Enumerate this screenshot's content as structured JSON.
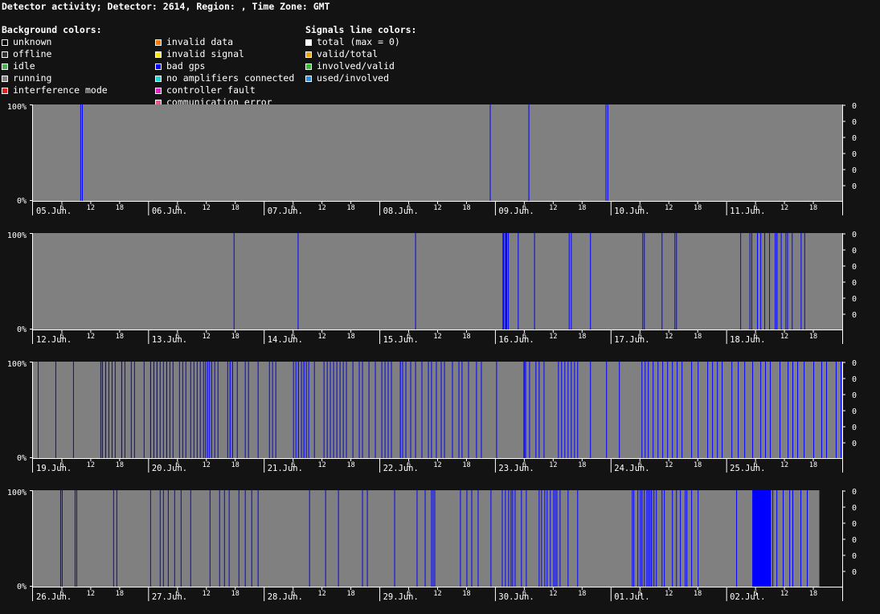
{
  "header": {
    "title": "Detector activity; Detector: 2614, Region: , Time Zone: GMT"
  },
  "legend": {
    "background": {
      "title": "Background colors:",
      "col1": [
        {
          "label": "unknown",
          "color": "#000000"
        },
        {
          "label": "offline",
          "color": "#333333"
        },
        {
          "label": "idle",
          "color": "#4caf50"
        },
        {
          "label": "running",
          "color": "#808080"
        },
        {
          "label": "interference mode",
          "color": "#e0201e"
        }
      ],
      "col2": [
        {
          "label": "invalid data",
          "color": "#f07c13"
        },
        {
          "label": "invalid signal",
          "color": "#f5e620"
        },
        {
          "label": "bad gps",
          "color": "#0000ff"
        },
        {
          "label": "no amplifiers connected",
          "color": "#1fd7d7"
        },
        {
          "label": "controller fault",
          "color": "#e020c8"
        },
        {
          "label": "communication error",
          "color": "#f2558a"
        }
      ]
    },
    "signals": {
      "title": "Signals line colors:",
      "items": [
        {
          "label": "total (max = 0)",
          "color": "#ffffff"
        },
        {
          "label": "valid/total",
          "color": "#f0a30a"
        },
        {
          "label": "involved/valid",
          "color": "#30c030"
        },
        {
          "label": "used/involved",
          "color": "#2f8fe0"
        }
      ]
    }
  },
  "chart_data": {
    "type": "timeline",
    "y_left_ticks": [
      "100%",
      "0%"
    ],
    "y_right_ticks": [
      "0",
      "0",
      "0",
      "0",
      "0",
      "0"
    ],
    "hour_ticks": [
      "6",
      "12",
      "18"
    ],
    "running_color": "#808080",
    "bad_gps_color": "#0000ff",
    "rows": [
      {
        "days": [
          "05.Jun.",
          "06.Jun.",
          "07.Jun.",
          "08.Jun.",
          "09.Jun.",
          "10.Jun.",
          "11.Jun."
        ],
        "data_end_day": 7,
        "bad_gps": [
          [
            0.409,
            0.004
          ],
          [
            0.424,
            0.004
          ],
          [
            3.952,
            0.004
          ],
          [
            4.286,
            0.004
          ],
          [
            4.953,
            0.004
          ],
          [
            4.969,
            0.004
          ]
        ]
      },
      {
        "days": [
          "12.Jun.",
          "13.Jun.",
          "14.Jun.",
          "15.Jun.",
          "16.Jun.",
          "17.Jun.",
          "18.Jun."
        ],
        "data_end_day": 7,
        "bad_gps": [
          [
            1.736,
            0.004
          ],
          [
            2.29,
            0.004
          ],
          [
            3.306,
            0.004
          ],
          [
            4.062,
            0.014
          ],
          [
            4.084,
            0.018
          ],
          [
            4.109,
            0.006
          ],
          [
            4.194,
            0.004
          ],
          [
            4.335,
            0.004
          ],
          [
            4.635,
            0.006
          ],
          [
            4.653,
            0.004
          ],
          [
            4.819,
            0.004
          ],
          [
            5.271,
            0.006
          ],
          [
            5.285,
            0.006
          ],
          [
            5.438,
            0.004
          ],
          [
            5.549,
            0.004
          ],
          [
            5.563,
            0.004
          ],
          [
            6.118,
            0.004
          ],
          [
            6.198,
            0.004
          ],
          [
            6.214,
            0.006
          ],
          [
            6.263,
            0.004
          ],
          [
            6.292,
            0.004
          ],
          [
            6.326,
            0.004
          ],
          [
            6.368,
            0.004
          ],
          [
            6.417,
            0.006
          ],
          [
            6.431,
            0.008
          ],
          [
            6.469,
            0.006
          ],
          [
            6.509,
            0.006
          ],
          [
            6.524,
            0.004
          ],
          [
            6.564,
            0.004
          ],
          [
            6.641,
            0.006
          ],
          [
            6.672,
            0.004
          ]
        ]
      },
      {
        "days": [
          "19.Jun.",
          "20.Jun.",
          "21.Jun.",
          "22.Jun.",
          "23.Jun.",
          "24.Jun.",
          "25.Jun."
        ],
        "data_end_day": 7,
        "bad_gps": [
          [
            0.042,
            0.004
          ],
          [
            0.194,
            0.004
          ],
          [
            0.347,
            0.004
          ],
          [
            0.583,
            0.004
          ],
          [
            0.597,
            0.008
          ],
          [
            0.625,
            0.008
          ],
          [
            0.653,
            0.004
          ],
          [
            0.681,
            0.004
          ],
          [
            0.708,
            0.004
          ],
          [
            0.764,
            0.008
          ],
          [
            0.792,
            0.004
          ],
          [
            0.847,
            0.004
          ],
          [
            0.875,
            0.004
          ],
          [
            0.958,
            0.004
          ],
          [
            1.014,
            0.008
          ],
          [
            1.042,
            0.008
          ],
          [
            1.069,
            0.008
          ],
          [
            1.097,
            0.004
          ],
          [
            1.125,
            0.004
          ],
          [
            1.153,
            0.008
          ],
          [
            1.181,
            0.004
          ],
          [
            1.208,
            0.004
          ],
          [
            1.264,
            0.004
          ],
          [
            1.292,
            0.004
          ],
          [
            1.319,
            0.004
          ],
          [
            1.361,
            0.004
          ],
          [
            1.389,
            0.004
          ],
          [
            1.417,
            0.004
          ],
          [
            1.444,
            0.004
          ],
          [
            1.472,
            0.006
          ],
          [
            1.49,
            0.006
          ],
          [
            1.507,
            0.006
          ],
          [
            1.524,
            0.004
          ],
          [
            1.542,
            0.006
          ],
          [
            1.569,
            0.004
          ],
          [
            1.597,
            0.004
          ],
          [
            1.681,
            0.006
          ],
          [
            1.701,
            0.008
          ],
          [
            1.722,
            0.008
          ],
          [
            1.764,
            0.004
          ],
          [
            1.833,
            0.004
          ],
          [
            1.861,
            0.004
          ],
          [
            1.944,
            0.004
          ],
          [
            2.042,
            0.004
          ],
          [
            2.069,
            0.004
          ],
          [
            2.097,
            0.004
          ],
          [
            2.25,
            0.006
          ],
          [
            2.271,
            0.004
          ],
          [
            2.292,
            0.008
          ],
          [
            2.319,
            0.006
          ],
          [
            2.34,
            0.008
          ],
          [
            2.361,
            0.004
          ],
          [
            2.382,
            0.006
          ],
          [
            2.431,
            0.004
          ],
          [
            2.514,
            0.004
          ],
          [
            2.542,
            0.006
          ],
          [
            2.569,
            0.004
          ],
          [
            2.597,
            0.004
          ],
          [
            2.625,
            0.006
          ],
          [
            2.653,
            0.004
          ],
          [
            2.681,
            0.004
          ],
          [
            2.708,
            0.004
          ],
          [
            2.764,
            0.004
          ],
          [
            2.819,
            0.004
          ],
          [
            2.847,
            0.004
          ],
          [
            2.903,
            0.004
          ],
          [
            2.958,
            0.004
          ],
          [
            3.014,
            0.004
          ],
          [
            3.042,
            0.004
          ],
          [
            3.069,
            0.004
          ],
          [
            3.097,
            0.004
          ],
          [
            3.174,
            0.008
          ],
          [
            3.194,
            0.006
          ],
          [
            3.222,
            0.004
          ],
          [
            3.264,
            0.004
          ],
          [
            3.306,
            0.004
          ],
          [
            3.361,
            0.004
          ],
          [
            3.417,
            0.004
          ],
          [
            3.444,
            0.004
          ],
          [
            3.486,
            0.004
          ],
          [
            3.528,
            0.004
          ],
          [
            3.556,
            0.004
          ],
          [
            3.625,
            0.004
          ],
          [
            3.681,
            0.004
          ],
          [
            3.708,
            0.004
          ],
          [
            3.764,
            0.004
          ],
          [
            3.833,
            0.004
          ],
          [
            3.875,
            0.004
          ],
          [
            4.007,
            0.004
          ],
          [
            4.243,
            0.01
          ],
          [
            4.257,
            0.008
          ],
          [
            4.292,
            0.004
          ],
          [
            4.347,
            0.004
          ],
          [
            4.375,
            0.004
          ],
          [
            4.417,
            0.004
          ],
          [
            4.542,
            0.004
          ],
          [
            4.569,
            0.004
          ],
          [
            4.597,
            0.006
          ],
          [
            4.625,
            0.004
          ],
          [
            4.653,
            0.006
          ],
          [
            4.681,
            0.006
          ],
          [
            4.708,
            0.004
          ],
          [
            4.819,
            0.004
          ],
          [
            4.958,
            0.004
          ],
          [
            5.069,
            0.004
          ],
          [
            5.264,
            0.004
          ],
          [
            5.292,
            0.004
          ],
          [
            5.319,
            0.004
          ],
          [
            5.361,
            0.004
          ],
          [
            5.403,
            0.004
          ],
          [
            5.444,
            0.004
          ],
          [
            5.486,
            0.004
          ],
          [
            5.528,
            0.004
          ],
          [
            5.569,
            0.004
          ],
          [
            5.611,
            0.004
          ],
          [
            5.694,
            0.004
          ],
          [
            5.75,
            0.004
          ],
          [
            5.833,
            0.004
          ],
          [
            5.875,
            0.004
          ],
          [
            5.917,
            0.004
          ],
          [
            5.958,
            0.004
          ],
          [
            6.042,
            0.004
          ],
          [
            6.097,
            0.004
          ],
          [
            6.153,
            0.004
          ],
          [
            6.222,
            0.004
          ],
          [
            6.292,
            0.004
          ],
          [
            6.333,
            0.004
          ],
          [
            6.375,
            0.004
          ],
          [
            6.458,
            0.004
          ],
          [
            6.528,
            0.004
          ],
          [
            6.569,
            0.004
          ],
          [
            6.611,
            0.004
          ],
          [
            6.667,
            0.004
          ],
          [
            6.75,
            0.004
          ],
          [
            6.819,
            0.004
          ],
          [
            6.861,
            0.004
          ],
          [
            6.944,
            0.004
          ],
          [
            6.986,
            0.004
          ]
        ]
      },
      {
        "days": [
          "26.Jun.",
          "27.Jun.",
          "28.Jun.",
          "29.Jun.",
          "30.Jun.",
          "01.Jul.",
          "02.Jul."
        ],
        "data_end_day": 6.802,
        "bad_gps": [
          [
            0.236,
            0.008
          ],
          [
            0.25,
            0.006
          ],
          [
            0.361,
            0.004
          ],
          [
            0.375,
            0.006
          ],
          [
            0.694,
            0.006
          ],
          [
            0.722,
            0.004
          ],
          [
            1.014,
            0.004
          ],
          [
            1.097,
            0.004
          ],
          [
            1.125,
            0.004
          ],
          [
            1.167,
            0.004
          ],
          [
            1.222,
            0.004
          ],
          [
            1.278,
            0.004
          ],
          [
            1.361,
            0.004
          ],
          [
            1.528,
            0.004
          ],
          [
            1.611,
            0.004
          ],
          [
            1.653,
            0.004
          ],
          [
            1.694,
            0.004
          ],
          [
            1.778,
            0.004
          ],
          [
            1.833,
            0.004
          ],
          [
            1.889,
            0.004
          ],
          [
            1.944,
            0.004
          ],
          [
            2.389,
            0.004
          ],
          [
            2.528,
            0.004
          ],
          [
            2.639,
            0.004
          ],
          [
            2.847,
            0.004
          ],
          [
            2.889,
            0.004
          ],
          [
            3.125,
            0.004
          ],
          [
            3.319,
            0.004
          ],
          [
            3.389,
            0.004
          ],
          [
            3.444,
            0.004
          ],
          [
            3.458,
            0.006
          ],
          [
            3.472,
            0.004
          ],
          [
            3.694,
            0.004
          ],
          [
            3.75,
            0.004
          ],
          [
            3.792,
            0.004
          ],
          [
            3.847,
            0.004
          ],
          [
            3.958,
            0.004
          ],
          [
            4.056,
            0.004
          ],
          [
            4.083,
            0.004
          ],
          [
            4.111,
            0.006
          ],
          [
            4.132,
            0.004
          ],
          [
            4.146,
            0.004
          ],
          [
            4.167,
            0.006
          ],
          [
            4.222,
            0.004
          ],
          [
            4.264,
            0.004
          ],
          [
            4.375,
            0.006
          ],
          [
            4.396,
            0.004
          ],
          [
            4.424,
            0.006
          ],
          [
            4.444,
            0.004
          ],
          [
            4.472,
            0.004
          ],
          [
            4.5,
            0.004
          ],
          [
            4.514,
            0.006
          ],
          [
            4.528,
            0.004
          ],
          [
            4.556,
            0.004
          ],
          [
            4.625,
            0.004
          ],
          [
            4.708,
            0.004
          ],
          [
            5.181,
            0.004
          ],
          [
            5.194,
            0.006
          ],
          [
            5.229,
            0.004
          ],
          [
            5.25,
            0.006
          ],
          [
            5.264,
            0.008
          ],
          [
            5.285,
            0.004
          ],
          [
            5.306,
            0.004
          ],
          [
            5.319,
            0.006
          ],
          [
            5.333,
            0.006
          ],
          [
            5.347,
            0.008
          ],
          [
            5.368,
            0.004
          ],
          [
            5.389,
            0.004
          ],
          [
            5.438,
            0.006
          ],
          [
            5.458,
            0.004
          ],
          [
            5.528,
            0.004
          ],
          [
            5.563,
            0.004
          ],
          [
            5.597,
            0.004
          ],
          [
            5.639,
            0.004
          ],
          [
            5.653,
            0.006
          ],
          [
            5.694,
            0.004
          ],
          [
            5.75,
            0.004
          ],
          [
            6.083,
            0.004
          ],
          [
            6.222,
            0.162
          ],
          [
            6.396,
            0.006
          ],
          [
            6.431,
            0.004
          ],
          [
            6.486,
            0.004
          ],
          [
            6.542,
            0.004
          ],
          [
            6.569,
            0.004
          ],
          [
            6.639,
            0.004
          ],
          [
            6.694,
            0.004
          ]
        ]
      }
    ]
  }
}
